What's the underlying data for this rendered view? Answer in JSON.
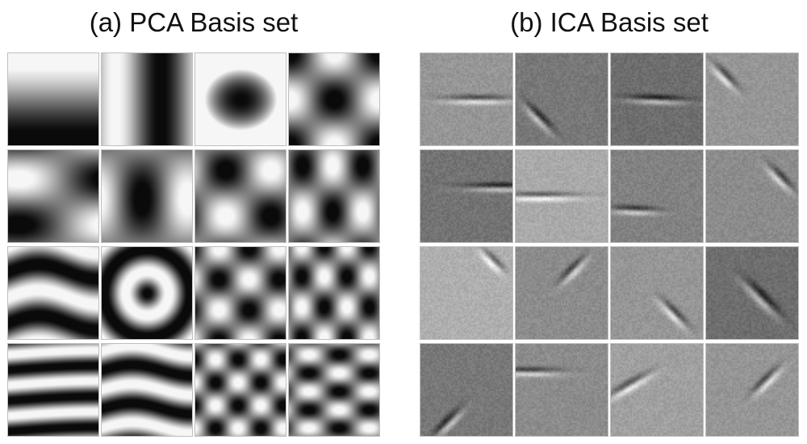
{
  "panels": [
    {
      "id": "a",
      "title": "(a) PCA Basis set",
      "rows": 4,
      "cols": 4
    },
    {
      "id": "b",
      "title": "(b) ICA Basis set",
      "rows": 4,
      "cols": 4
    }
  ],
  "colors": {
    "background": "#ffffff",
    "tile_border": "#bfbfbf",
    "title_text": "#111111"
  }
}
